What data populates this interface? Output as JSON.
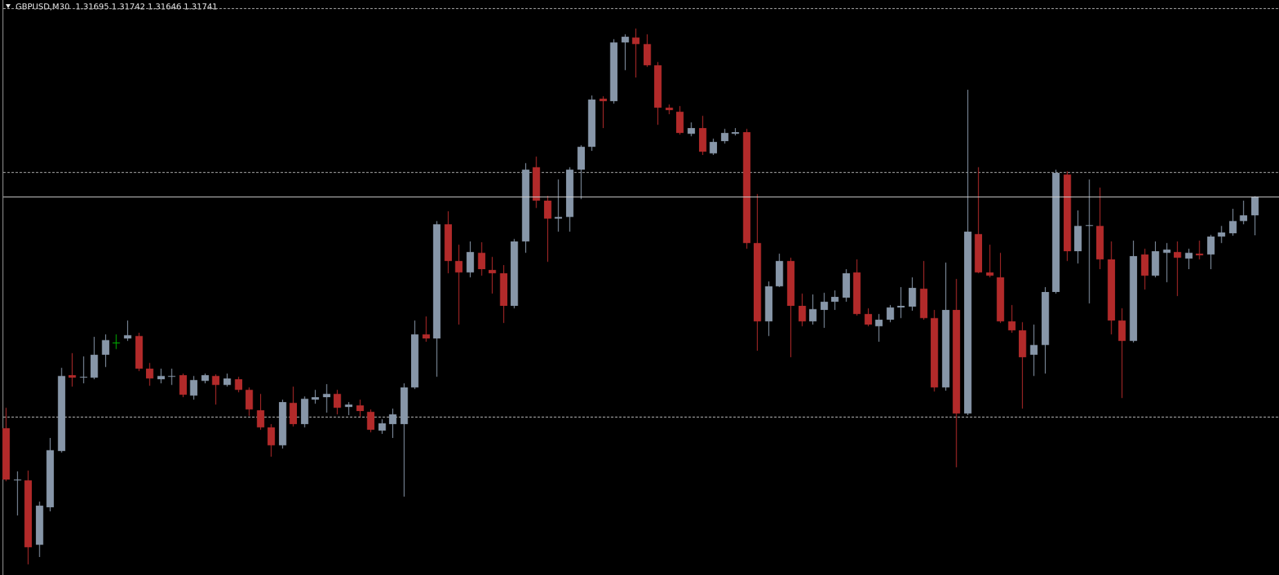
{
  "chart_data": {
    "type": "candlestick",
    "title": "GBPUSD,M30",
    "open": [
      1.31173,
      1.31045,
      1.31045,
      1.30887,
      1.30979,
      1.31117,
      1.31303,
      1.31297,
      1.31297,
      1.31353,
      1.31383,
      1.31393,
      1.31399,
      1.31319,
      1.31293,
      1.31299,
      1.31303,
      1.31253,
      1.31289,
      1.31301,
      1.31279,
      1.31293,
      1.31267,
      1.31217,
      1.31175,
      1.31131,
      1.31235,
      1.31183,
      1.31243,
      1.31249,
      1.31257,
      1.31225,
      1.31229,
      1.31213,
      1.31167,
      1.31183,
      1.31183,
      1.31273,
      1.31403,
      1.31393,
      1.31673,
      1.31583,
      1.31555,
      1.31603,
      1.31561,
      1.31553,
      1.31473,
      1.31631,
      1.31813,
      1.31731,
      1.31687,
      1.31691,
      1.31807,
      1.31863,
      1.31981,
      1.31975,
      1.32119,
      1.32131,
      1.32115,
      1.32063,
      1.31959,
      1.31949,
      1.31895,
      1.31909,
      1.31847,
      1.31877,
      1.31895,
      1.31899,
      1.31627,
      1.31435,
      1.31521,
      1.31583,
      1.31473,
      1.31435,
      1.31463,
      1.31483,
      1.31493,
      1.31555,
      1.31453,
      1.31423,
      1.31439,
      1.31469,
      1.31471,
      1.31515,
      1.31443,
      1.31273,
      1.31463,
      1.31209,
      1.31649,
      1.31555,
      1.31543,
      1.31435,
      1.31413,
      1.31353,
      1.31377,
      1.31507,
      1.31795,
      1.31607,
      1.31669,
      1.31669,
      1.31587,
      1.31437,
      1.31387,
      1.31599,
      1.31547,
      1.31603,
      1.31605,
      1.31589,
      1.31601,
      1.31599,
      1.31643,
      1.31651,
      1.31681,
      1.31695
    ],
    "high": [
      1.31223,
      1.31067,
      1.31069,
      1.30993,
      1.31149,
      1.31321,
      1.31357,
      1.31349,
      1.31397,
      1.31403,
      1.31403,
      1.31437,
      1.31407,
      1.31333,
      1.31319,
      1.31319,
      1.31307,
      1.31301,
      1.31307,
      1.31305,
      1.31307,
      1.31299,
      1.31273,
      1.31257,
      1.31183,
      1.31243,
      1.31275,
      1.31251,
      1.31267,
      1.31281,
      1.31267,
      1.31237,
      1.31243,
      1.31219,
      1.31195,
      1.31221,
      1.31283,
      1.31437,
      1.31447,
      1.31681,
      1.31705,
      1.31623,
      1.31631,
      1.31629,
      1.31593,
      1.31573,
      1.31637,
      1.31823,
      1.31839,
      1.31743,
      1.31783,
      1.31813,
      1.31867,
      1.31989,
      1.31987,
      1.32127,
      1.32139,
      1.32153,
      1.32139,
      1.32071,
      1.31967,
      1.31963,
      1.31923,
      1.31939,
      1.31883,
      1.31907,
      1.31909,
      1.31907,
      1.31747,
      1.31533,
      1.31601,
      1.31591,
      1.31503,
      1.31501,
      1.31505,
      1.31511,
      1.31563,
      1.31587,
      1.31467,
      1.31453,
      1.31475,
      1.31519,
      1.31543,
      1.31583,
      1.31463,
      1.31579,
      1.31539,
      1.32003,
      1.31813,
      1.31623,
      1.31603,
      1.31475,
      1.31433,
      1.31427,
      1.31519,
      1.31807,
      1.31803,
      1.31707,
      1.31783,
      1.31763,
      1.31631,
      1.31467,
      1.31633,
      1.31613,
      1.31631,
      1.31627,
      1.31631,
      1.31613,
      1.31633,
      1.31647,
      1.31669,
      1.31711,
      1.31731,
      1.31742
    ],
    "low": [
      1.31043,
      1.30959,
      1.30839,
      1.30857,
      1.30969,
      1.31113,
      1.31275,
      1.31283,
      1.31293,
      1.31323,
      1.31367,
      1.31387,
      1.31313,
      1.31277,
      1.31283,
      1.31279,
      1.31249,
      1.31243,
      1.31283,
      1.31231,
      1.31275,
      1.31261,
      1.31203,
      1.31169,
      1.31103,
      1.31123,
      1.31177,
      1.31175,
      1.31233,
      1.31211,
      1.31207,
      1.31205,
      1.31201,
      1.31163,
      1.31159,
      1.31149,
      1.31005,
      1.31269,
      1.31385,
      1.31299,
      1.31553,
      1.31427,
      1.31543,
      1.31547,
      1.31503,
      1.31431,
      1.31467,
      1.31603,
      1.31713,
      1.31581,
      1.31655,
      1.31655,
      1.31735,
      1.31853,
      1.31909,
      1.31969,
      1.32051,
      1.32033,
      1.32059,
      1.31917,
      1.31943,
      1.31893,
      1.31889,
      1.31843,
      1.31843,
      1.31871,
      1.31891,
      1.31613,
      1.31363,
      1.31399,
      1.31519,
      1.31347,
      1.31423,
      1.31427,
      1.31419,
      1.31463,
      1.31483,
      1.31449,
      1.31423,
      1.31385,
      1.31433,
      1.31443,
      1.31461,
      1.31439,
      1.31263,
      1.31265,
      1.31077,
      1.31205,
      1.31553,
      1.31543,
      1.31431,
      1.31407,
      1.31221,
      1.31301,
      1.31307,
      1.31503,
      1.31583,
      1.31577,
      1.31479,
      1.31563,
      1.31403,
      1.31247,
      1.31383,
      1.31513,
      1.31543,
      1.31531,
      1.31497,
      1.31563,
      1.31587,
      1.31563,
      1.31627,
      1.31645,
      1.31673,
      1.31646
    ],
    "close": [
      1.31047,
      1.31047,
      1.30881,
      1.30983,
      1.31119,
      1.31301,
      1.31297,
      1.31299,
      1.31353,
      1.31389,
      1.31383,
      1.31401,
      1.31319,
      1.31295,
      1.31301,
      1.31301,
      1.31255,
      1.31291,
      1.31303,
      1.31279,
      1.31295,
      1.31267,
      1.31219,
      1.31175,
      1.31131,
      1.31237,
      1.31183,
      1.31245,
      1.31249,
      1.31257,
      1.31223,
      1.31231,
      1.31215,
      1.31169,
      1.31185,
      1.31207,
      1.31273,
      1.31403,
      1.31393,
      1.31673,
      1.31583,
      1.31555,
      1.31605,
      1.31563,
      1.31553,
      1.31473,
      1.31631,
      1.31807,
      1.31731,
      1.31687,
      1.31691,
      1.31807,
      1.31863,
      1.31979,
      1.31975,
      1.32119,
      1.32133,
      1.32115,
      1.32063,
      1.31959,
      1.31953,
      1.31897,
      1.31909,
      1.31851,
      1.31875,
      1.31897,
      1.31899,
      1.31627,
      1.31435,
      1.31521,
      1.31583,
      1.31473,
      1.31435,
      1.31465,
      1.31483,
      1.31495,
      1.31553,
      1.31453,
      1.31427,
      1.31439,
      1.31469,
      1.31473,
      1.31517,
      1.31443,
      1.31273,
      1.31463,
      1.31209,
      1.31655,
      1.31555,
      1.31547,
      1.31435,
      1.31413,
      1.31347,
      1.31377,
      1.31507,
      1.31799,
      1.31607,
      1.31669,
      1.31671,
      1.31587,
      1.31437,
      1.31387,
      1.31595,
      1.31547,
      1.31607,
      1.31611,
      1.31591,
      1.31603,
      1.31597,
      1.31643,
      1.31653,
      1.31681,
      1.31695,
      1.31741
    ],
    "ylim": [
      1.30813,
      1.32223
    ],
    "levels": [
      1.32203,
      1.31801,
      1.31201
    ],
    "up_color": "#8796a8",
    "down_color": "#b22a2a",
    "doji_color": "#00b000",
    "level_color": "#b4b4b4",
    "bid_line_color": "#d0d0d0",
    "background": "#000000"
  }
}
